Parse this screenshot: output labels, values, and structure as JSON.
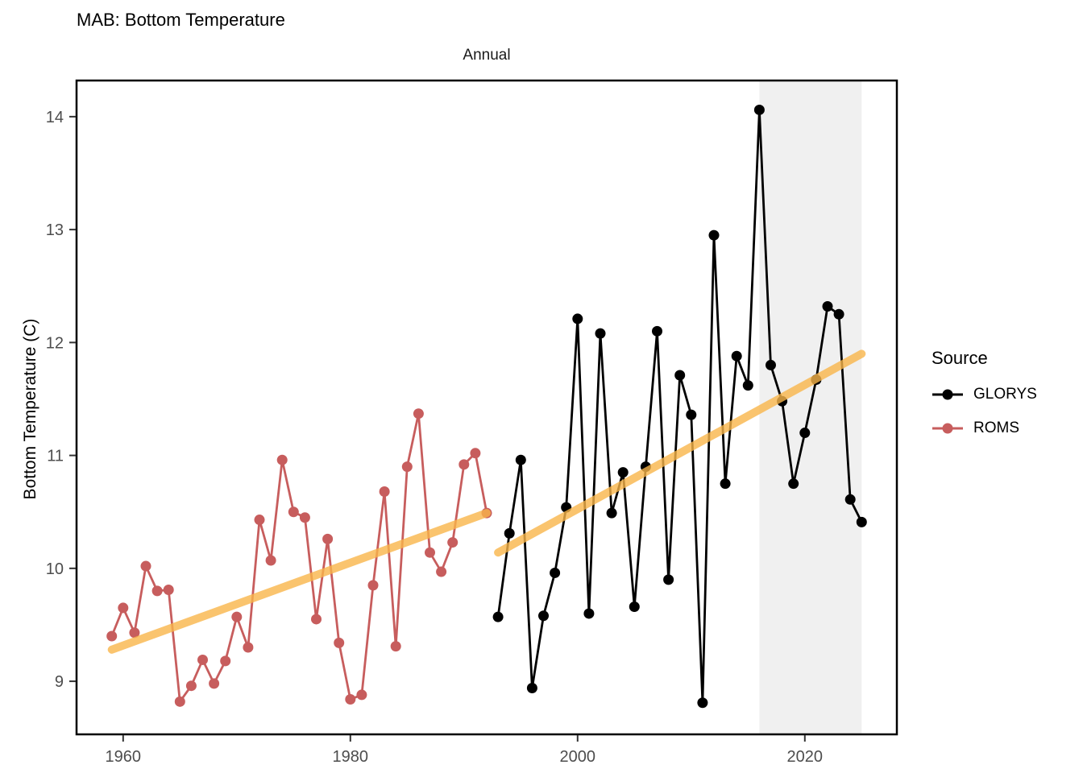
{
  "page": {
    "background_color": "#FFFFFF"
  },
  "chart_data": {
    "type": "line",
    "title": "MAB: Bottom Temperature",
    "subtitle": "Annual",
    "xlabel": "",
    "ylabel": "Bottom Temperature (C)",
    "grid": false,
    "x_range": [
      1955.9,
      2028.1
    ],
    "y_range": [
      8.53,
      14.32
    ],
    "x_ticks": [
      1960,
      1980,
      2000,
      2020
    ],
    "y_ticks": [
      9,
      10,
      11,
      12,
      13,
      14
    ],
    "legend": {
      "title": "Source",
      "position": "right"
    },
    "shaded_region": {
      "x_start": 2016,
      "x_end": 2025,
      "color": "#F0F0F0"
    },
    "axis_style": {
      "tick_label_color": "#4D4D4D",
      "tick_color": "#333333",
      "frame_color": "#000000"
    },
    "series": [
      {
        "name": "GLORYS",
        "color": "#000000",
        "x": [
          1993,
          1994,
          1995,
          1996,
          1997,
          1998,
          1999,
          2000,
          2001,
          2002,
          2003,
          2004,
          2005,
          2006,
          2007,
          2008,
          2009,
          2010,
          2011,
          2012,
          2013,
          2014,
          2015,
          2016,
          2017,
          2018,
          2019,
          2020,
          2021,
          2022,
          2023,
          2024,
          2025
        ],
        "values": [
          9.57,
          10.31,
          10.96,
          8.94,
          9.58,
          9.96,
          10.54,
          12.21,
          9.6,
          12.08,
          10.49,
          10.85,
          9.66,
          10.9,
          12.1,
          9.9,
          11.71,
          11.36,
          8.81,
          12.95,
          10.75,
          11.88,
          11.62,
          14.06,
          11.8,
          11.48,
          10.75,
          11.2,
          11.67,
          12.32,
          12.25,
          10.61,
          10.41
        ]
      },
      {
        "name": "ROMS",
        "color": "#C75D5D",
        "x": [
          1959,
          1960,
          1961,
          1962,
          1963,
          1964,
          1965,
          1966,
          1967,
          1968,
          1969,
          1970,
          1971,
          1972,
          1973,
          1974,
          1975,
          1976,
          1977,
          1978,
          1979,
          1980,
          1981,
          1982,
          1983,
          1984,
          1985,
          1986,
          1987,
          1988,
          1989,
          1990,
          1991,
          1992
        ],
        "values": [
          9.4,
          9.65,
          9.43,
          10.02,
          9.8,
          9.81,
          8.82,
          8.96,
          9.19,
          8.98,
          9.18,
          9.57,
          9.3,
          10.43,
          10.07,
          10.96,
          10.5,
          10.45,
          9.55,
          10.26,
          9.34,
          8.84,
          8.88,
          9.85,
          10.68,
          9.31,
          10.9,
          11.37,
          10.14,
          9.97,
          10.23,
          10.92,
          11.02,
          10.49
        ]
      }
    ],
    "trend_lines": [
      {
        "series": "ROMS",
        "color": "#F9B54A",
        "opacity": 0.8,
        "x": [
          1959,
          1992
        ],
        "values": [
          9.28,
          10.49
        ]
      },
      {
        "series": "GLORYS",
        "color": "#F9B54A",
        "opacity": 0.8,
        "x": [
          1993,
          2025
        ],
        "values": [
          10.14,
          11.9
        ]
      }
    ]
  }
}
